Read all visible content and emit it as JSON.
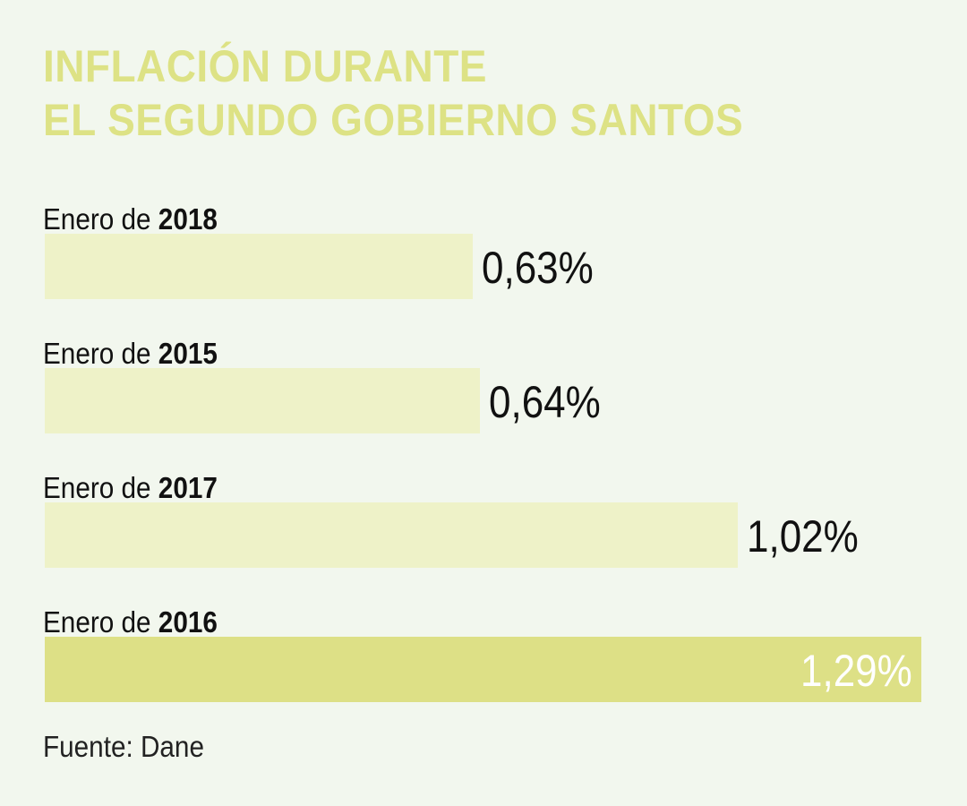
{
  "chart_data": {
    "type": "bar",
    "orientation": "horizontal",
    "title": "INFLACIÓN DURANTE EL SEGUNDO GOBIERNO SANTOS",
    "title_lines": [
      "INFLACIÓN DURANTE",
      "EL SEGUNDO GOBIERNO SANTOS"
    ],
    "categories": [
      {
        "prefix": "Enero de",
        "year": "2018"
      },
      {
        "prefix": "Enero de",
        "year": "2015"
      },
      {
        "prefix": "Enero de",
        "year": "2017"
      },
      {
        "prefix": "Enero de",
        "year": "2016"
      }
    ],
    "values": [
      0.63,
      0.64,
      1.02,
      1.29
    ],
    "data_labels": [
      "0,63%",
      "0,64%",
      "1,02%",
      "1,29%"
    ],
    "unit": "%",
    "xlim": [
      0,
      1.29
    ],
    "grid": false,
    "highlight_index": 3,
    "source": "Fuente: Dane",
    "colors": {
      "background": "#f2f7ee",
      "title": "#dde285",
      "bar": "#eef2c8",
      "bar_highlight": "#dde086",
      "label_text": "#111111",
      "highlight_label_text": "#ffffff"
    }
  }
}
